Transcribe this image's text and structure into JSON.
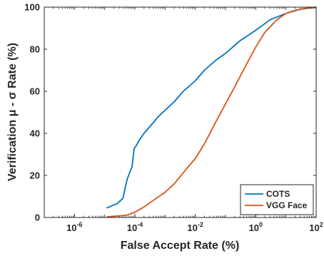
{
  "chart_data": {
    "type": "line",
    "title": "",
    "xlabel": "False Accept Rate (%)",
    "ylabel": "Verification μ - σ Rate (%)",
    "x_scale": "log",
    "xlim": [
      1e-07,
      100
    ],
    "ylim": [
      0,
      100
    ],
    "x_ticks": [
      {
        "value": 1e-06,
        "base": "10",
        "exp": "-6"
      },
      {
        "value": 0.0001,
        "base": "10",
        "exp": "-4"
      },
      {
        "value": 0.01,
        "base": "10",
        "exp": "-2"
      },
      {
        "value": 1,
        "base": "10",
        "exp": "0"
      },
      {
        "value": 100,
        "base": "10",
        "exp": "2"
      }
    ],
    "y_ticks": [
      0,
      20,
      40,
      60,
      80,
      100
    ],
    "grid": false,
    "legend_position": "bottom-right",
    "series": [
      {
        "name": "COTS",
        "color": "#0072BD",
        "x": [
          1.15e-05,
          2.5e-05,
          4e-05,
          5.5e-05,
          7e-05,
          8e-05,
          9.5e-05,
          0.00011,
          0.00013,
          0.0002,
          0.0004,
          0.0006,
          0.001,
          0.002,
          0.004,
          0.01,
          0.02,
          0.05,
          0.1,
          0.3,
          1,
          3,
          10,
          30,
          100
        ],
        "y": [
          4.5,
          6.5,
          9,
          18,
          22,
          24,
          33,
          34,
          36,
          40,
          45,
          48,
          51,
          55,
          60,
          65,
          70,
          75,
          78,
          84,
          89,
          94,
          97,
          99,
          100
        ]
      },
      {
        "name": "VGG Face",
        "color": "#D95319",
        "x": [
          1.15e-05,
          5e-05,
          0.0001,
          0.0002,
          0.0005,
          0.001,
          0.002,
          0.005,
          0.01,
          0.02,
          0.05,
          0.1,
          0.2,
          0.5,
          1,
          2,
          5,
          10,
          20,
          50,
          100
        ],
        "y": [
          0.3,
          1,
          2.5,
          5,
          9,
          12,
          16,
          23,
          28,
          35,
          46,
          54,
          62,
          73,
          81,
          88,
          94,
          97,
          98.5,
          99.5,
          100
        ]
      }
    ]
  }
}
